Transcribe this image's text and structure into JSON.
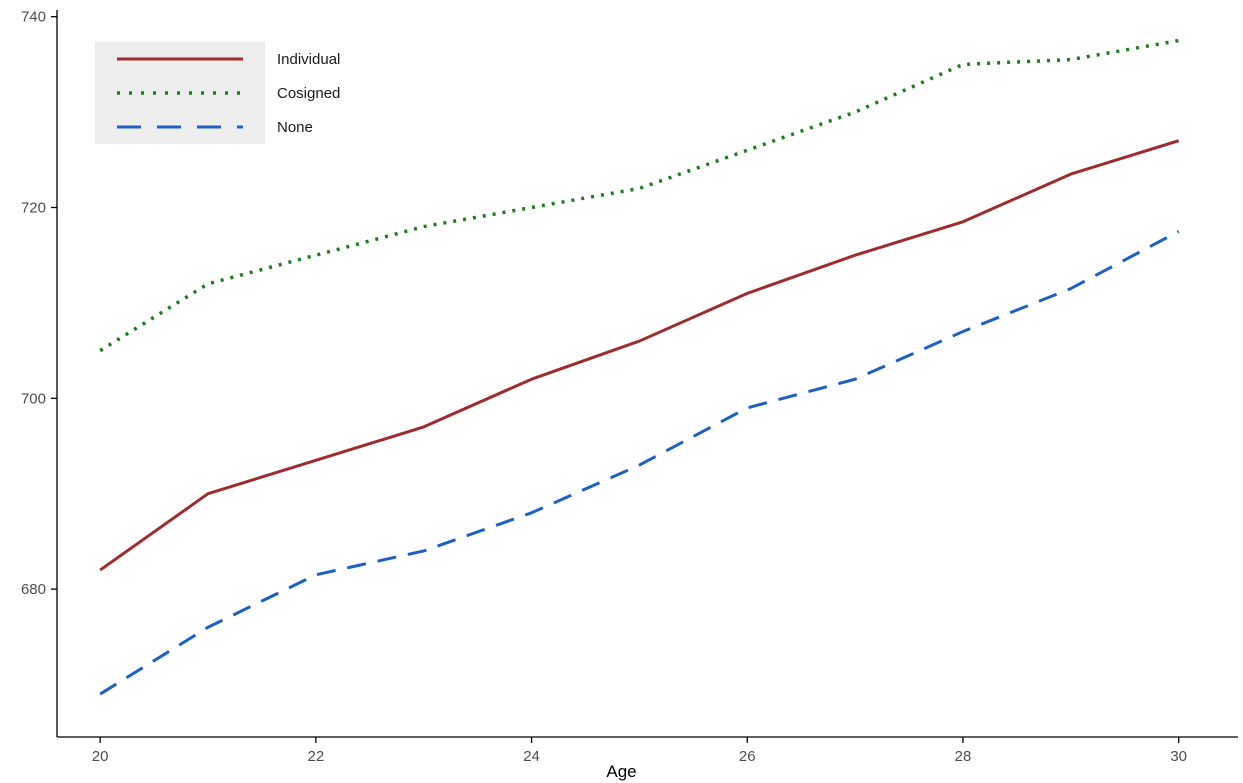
{
  "chart_data": {
    "type": "line",
    "title": "",
    "xlabel": "Age",
    "ylabel": "",
    "grid": false,
    "legend_position": "top-left",
    "legend_key_background": "#ededed",
    "axis_color": "#000000",
    "tick_label_color": "#4d4d4d",
    "x": [
      20,
      21,
      22,
      23,
      24,
      25,
      26,
      27,
      28,
      29,
      30
    ],
    "x_ticks": [
      20,
      22,
      24,
      26,
      28,
      30
    ],
    "y_ticks": [
      680,
      700,
      720,
      740
    ],
    "xlim": [
      19.6,
      30.55
    ],
    "ylim": [
      664.5,
      740.7
    ],
    "series": [
      {
        "name": "Individual",
        "color": "#9e2b2f",
        "line_style": "solid",
        "values": [
          682,
          690,
          693.5,
          697,
          702,
          706,
          711,
          715,
          718.5,
          723.5,
          727
        ]
      },
      {
        "name": "Cosigned",
        "color": "#1b7d1b",
        "line_style": "dotted",
        "values": [
          705,
          712,
          715,
          718,
          720,
          722,
          726,
          730,
          735,
          735.5,
          737.5
        ]
      },
      {
        "name": "None",
        "color": "#1c5fc6",
        "line_style": "dashed",
        "values": [
          669,
          676,
          681.5,
          684,
          688,
          693,
          699,
          702,
          707,
          711.5,
          717.5
        ]
      }
    ]
  }
}
